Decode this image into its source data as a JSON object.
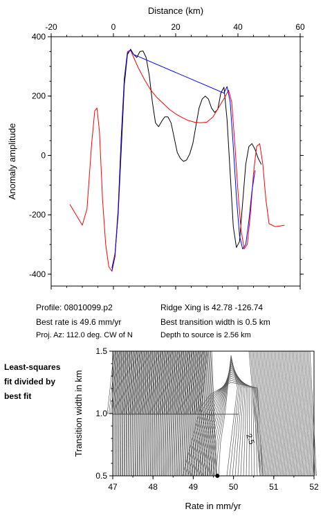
{
  "top_axis_label": "Distance (km)",
  "info": {
    "profile": "Profile: 08010099.p2",
    "ridge": "Ridge Xing is 42.78 -126.74",
    "rate": "Best rate is 49.6 mm/yr",
    "transition": "Best transition width is 0.5 km",
    "azimuth": "Proj. Az: 112.0 deg. CW of N",
    "depth": "Depth to source is   2.56 km"
  },
  "side_note": [
    "Least-squares",
    "fit divided by",
    "best fit"
  ],
  "chart_data": [
    {
      "type": "line",
      "xlabel": "Distance (km)",
      "ylabel": "Anomaly amplitude",
      "xlim": [
        -20,
        60
      ],
      "ylim": [
        -440,
        400
      ],
      "xticks": [
        -20,
        0,
        20,
        40,
        60
      ],
      "yticks": [
        -400,
        -200,
        0,
        200,
        400
      ],
      "grid": false,
      "series": [
        {
          "color": "#000000",
          "x": [
            -0.5,
            0.5,
            1.5,
            2.5,
            3.5,
            4.5,
            5.5,
            6.5,
            7.5,
            8.5,
            9.5,
            10.5,
            11.5,
            12.5,
            13.5,
            14.5,
            15.5,
            16.5,
            17.5,
            18.5,
            19.5,
            20.5,
            21.5,
            22.5,
            23.5,
            24.5,
            25.5,
            26.5,
            27.5,
            28.5,
            29.5,
            30.5,
            31.5,
            32.5,
            33.5,
            34.5,
            35.5,
            36.5,
            37.5,
            38.5,
            39.5,
            40.5,
            41.5,
            42.5,
            43.5,
            44.5,
            45.5,
            46.5,
            47.5
          ],
          "y": [
            -380,
            -330,
            -200,
            20,
            240,
            340,
            358,
            340,
            330,
            350,
            352,
            330,
            270,
            180,
            110,
            97,
            115,
            130,
            130,
            110,
            60,
            10,
            -10,
            -20,
            -15,
            5,
            40,
            100,
            160,
            190,
            200,
            190,
            160,
            145,
            155,
            210,
            230,
            120,
            -60,
            -240,
            -310,
            -290,
            -160,
            -30,
            30,
            40,
            20,
            -10,
            -30
          ]
        },
        {
          "color": "#ff0000",
          "x": [
            -14,
            -12,
            -10,
            -8.5,
            -7,
            -6,
            -5.3,
            -4.5,
            -3.5,
            -2.5,
            -1.5,
            -0.5,
            0.5,
            1.5,
            2.5,
            3.5,
            4.5,
            5.5,
            6.5,
            8,
            10,
            12,
            14,
            16,
            18,
            20,
            22,
            24,
            26,
            28,
            30,
            32,
            34,
            36,
            37,
            38,
            39,
            40,
            41,
            42,
            43,
            44,
            45,
            46,
            47,
            48,
            49,
            50,
            52,
            55
          ],
          "y": [
            -165,
            -200,
            -235,
            -180,
            40,
            150,
            160,
            80,
            -150,
            -300,
            -375,
            -390,
            -330,
            -180,
            60,
            260,
            350,
            355,
            330,
            295,
            255,
            220,
            195,
            175,
            155,
            140,
            128,
            118,
            112,
            110,
            112,
            130,
            165,
            200,
            220,
            180,
            40,
            -120,
            -250,
            -315,
            -300,
            -200,
            -60,
            30,
            40,
            -30,
            -150,
            -230,
            -240,
            -235
          ]
        },
        {
          "color": "#0000ff",
          "x": [
            -0.5,
            0.5,
            1.5,
            2.5,
            3.5,
            4.5,
            5.5,
            6.5,
            35.5,
            36.5,
            37.5,
            38.5,
            39.5,
            40.5,
            41.5,
            42.5,
            43.5,
            44.5,
            45.5
          ],
          "y": [
            -390,
            -340,
            -190,
            60,
            260,
            345,
            355,
            340,
            210,
            232,
            180,
            30,
            -140,
            -270,
            -315,
            -300,
            -220,
            -120,
            -50
          ]
        }
      ]
    },
    {
      "type": "contour",
      "xlabel": "Rate in mm/yr",
      "ylabel": "Transition width in km",
      "xlim": [
        47,
        52
      ],
      "ylim": [
        0.5,
        1.5
      ],
      "xticks": [
        47,
        48,
        49,
        50,
        51,
        52
      ],
      "yticks": [
        0.5,
        1.0,
        1.5
      ],
      "contour_label": "2.5",
      "best_fit_point": {
        "x": 49.6,
        "y": 0.5
      }
    }
  ]
}
